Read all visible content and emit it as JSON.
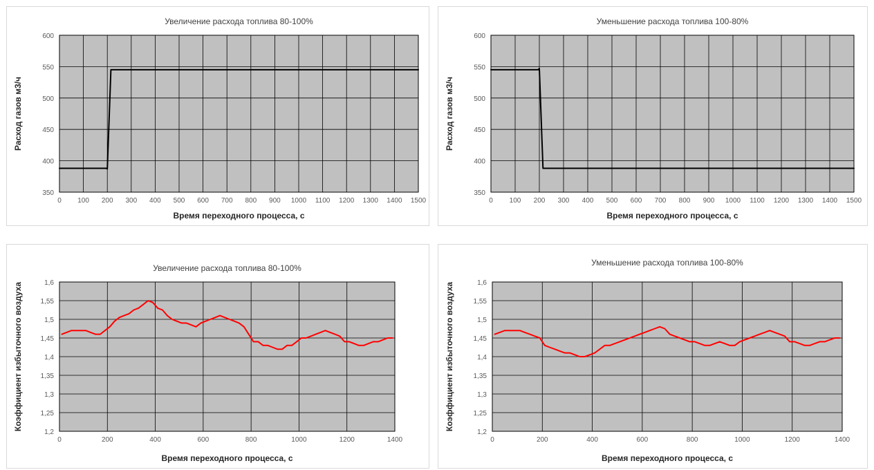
{
  "chart_data": [
    {
      "type": "line",
      "title": "Увеличение расхода топлива 80-100%",
      "xlabel": "Время переходного процесса, с",
      "ylabel": "Расход газов м3/ч",
      "xlim": [
        0,
        1500
      ],
      "ylim": [
        350,
        600
      ],
      "xticks": [
        0,
        100,
        200,
        300,
        400,
        500,
        600,
        700,
        800,
        900,
        1000,
        1100,
        1200,
        1300,
        1400,
        1500
      ],
      "yticks": [
        350,
        400,
        450,
        500,
        550,
        600
      ],
      "ytick_decimals": 0,
      "grid": true,
      "plot_background": "#c0c0c0",
      "series": [
        {
          "color": "#000000",
          "x": [
            0,
            195,
            200,
            215,
            1500
          ],
          "y": [
            388,
            388,
            387,
            545,
            545
          ]
        }
      ]
    },
    {
      "type": "line",
      "title": "Уменьшение расхода топлива 100-80%",
      "xlabel": "Время переходного процесса, с",
      "ylabel": "Расход газов м3/ч",
      "xlim": [
        0,
        1500
      ],
      "ylim": [
        350,
        600
      ],
      "xticks": [
        0,
        100,
        200,
        300,
        400,
        500,
        600,
        700,
        800,
        900,
        1000,
        1100,
        1200,
        1300,
        1400,
        1500
      ],
      "yticks": [
        350,
        400,
        450,
        500,
        550,
        600
      ],
      "ytick_decimals": 0,
      "grid": true,
      "plot_background": "#c0c0c0",
      "series": [
        {
          "color": "#000000",
          "x": [
            0,
            195,
            200,
            215,
            1500
          ],
          "y": [
            545,
            545,
            547,
            388,
            388
          ]
        }
      ]
    },
    {
      "type": "line",
      "title": "Увеличение расхода топлива 80-100%",
      "xlabel": "Время переходного процесса, с",
      "ylabel": "Коэффициент избыточного воздуха",
      "xlim": [
        0,
        1400
      ],
      "ylim": [
        1.2,
        1.6
      ],
      "xticks": [
        0,
        200,
        400,
        600,
        800,
        1000,
        1200,
        1400
      ],
      "yticks": [
        1.2,
        1.25,
        1.3,
        1.35,
        1.4,
        1.45,
        1.5,
        1.55,
        1.6
      ],
      "ytick_decimals": "auto",
      "decimal_comma": true,
      "grid": true,
      "plot_background": "#c0c0c0",
      "series": [
        {
          "color": "#ff0000",
          "x": [
            10,
            30,
            50,
            70,
            90,
            110,
            130,
            150,
            170,
            190,
            210,
            230,
            250,
            270,
            290,
            310,
            330,
            350,
            370,
            390,
            410,
            430,
            450,
            470,
            490,
            510,
            530,
            550,
            570,
            590,
            610,
            630,
            650,
            670,
            690,
            710,
            730,
            750,
            770,
            790,
            810,
            830,
            850,
            870,
            890,
            910,
            930,
            950,
            970,
            990,
            1010,
            1030,
            1050,
            1070,
            1090,
            1110,
            1130,
            1150,
            1170,
            1190,
            1210,
            1230,
            1250,
            1270,
            1290,
            1310,
            1330,
            1350,
            1370,
            1390
          ],
          "y": [
            1.46,
            1.465,
            1.47,
            1.47,
            1.47,
            1.47,
            1.465,
            1.46,
            1.46,
            1.47,
            1.48,
            1.495,
            1.505,
            1.51,
            1.515,
            1.525,
            1.53,
            1.54,
            1.55,
            1.545,
            1.53,
            1.525,
            1.51,
            1.5,
            1.495,
            1.49,
            1.49,
            1.485,
            1.48,
            1.49,
            1.495,
            1.5,
            1.505,
            1.51,
            1.505,
            1.5,
            1.495,
            1.49,
            1.48,
            1.46,
            1.44,
            1.44,
            1.43,
            1.43,
            1.425,
            1.42,
            1.42,
            1.43,
            1.43,
            1.44,
            1.45,
            1.45,
            1.455,
            1.46,
            1.465,
            1.47,
            1.465,
            1.46,
            1.455,
            1.44,
            1.44,
            1.435,
            1.43,
            1.43,
            1.435,
            1.44,
            1.44,
            1.445,
            1.45,
            1.45
          ]
        }
      ]
    },
    {
      "type": "line",
      "title": "Уменьшение расхода топлива 100-80%",
      "xlabel": "Время переходного процесса, с",
      "ylabel": "Коэффициент избыточного воздуха",
      "xlim": [
        0,
        1400
      ],
      "ylim": [
        1.2,
        1.6
      ],
      "xticks": [
        0,
        200,
        400,
        600,
        800,
        1000,
        1200,
        1400
      ],
      "yticks": [
        1.2,
        1.25,
        1.3,
        1.35,
        1.4,
        1.45,
        1.5,
        1.55,
        1.6
      ],
      "ytick_decimals": "auto",
      "decimal_comma": true,
      "grid": true,
      "plot_background": "#c0c0c0",
      "series": [
        {
          "color": "#ff0000",
          "x": [
            10,
            30,
            50,
            70,
            90,
            110,
            130,
            150,
            170,
            190,
            210,
            230,
            250,
            270,
            290,
            310,
            330,
            350,
            370,
            390,
            410,
            430,
            450,
            470,
            490,
            510,
            530,
            550,
            570,
            590,
            610,
            630,
            650,
            670,
            690,
            710,
            730,
            750,
            770,
            790,
            810,
            830,
            850,
            870,
            890,
            910,
            930,
            950,
            970,
            990,
            1010,
            1030,
            1050,
            1070,
            1090,
            1110,
            1130,
            1150,
            1170,
            1190,
            1210,
            1230,
            1250,
            1270,
            1290,
            1310,
            1330,
            1350,
            1370,
            1390
          ],
          "y": [
            1.46,
            1.465,
            1.47,
            1.47,
            1.47,
            1.47,
            1.465,
            1.46,
            1.455,
            1.45,
            1.43,
            1.425,
            1.42,
            1.415,
            1.41,
            1.41,
            1.405,
            1.4,
            1.4,
            1.405,
            1.41,
            1.42,
            1.43,
            1.43,
            1.435,
            1.44,
            1.445,
            1.45,
            1.455,
            1.46,
            1.465,
            1.47,
            1.475,
            1.48,
            1.475,
            1.46,
            1.455,
            1.45,
            1.445,
            1.44,
            1.44,
            1.435,
            1.43,
            1.43,
            1.435,
            1.44,
            1.435,
            1.43,
            1.43,
            1.44,
            1.445,
            1.45,
            1.455,
            1.46,
            1.465,
            1.47,
            1.465,
            1.46,
            1.455,
            1.44,
            1.44,
            1.435,
            1.43,
            1.43,
            1.435,
            1.44,
            1.44,
            1.445,
            1.45,
            1.45
          ]
        }
      ]
    }
  ]
}
